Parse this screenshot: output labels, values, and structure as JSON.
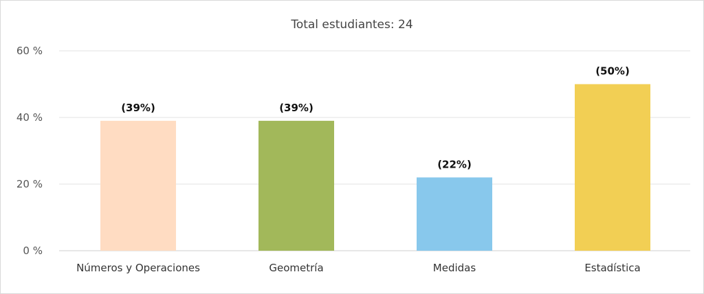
{
  "chart_data": {
    "type": "bar",
    "title": "Total estudiantes: 24",
    "categories": [
      "Números y Operaciones",
      "Geometría",
      "Medidas",
      "Estadística"
    ],
    "values": [
      39,
      39,
      22,
      50
    ],
    "data_labels": [
      "(39%)",
      "(39%)",
      "(22%)",
      "(50%)"
    ],
    "y_ticks": [
      "0 %",
      "20 %",
      "40 %",
      "60 %"
    ],
    "y_tick_values": [
      0,
      20,
      40,
      60
    ],
    "ylim": [
      0,
      60
    ],
    "colors": [
      "#ffdcc2",
      "#a2b85a",
      "#88c8ec",
      "#f2cf54"
    ],
    "grid": true,
    "legend": "none"
  }
}
